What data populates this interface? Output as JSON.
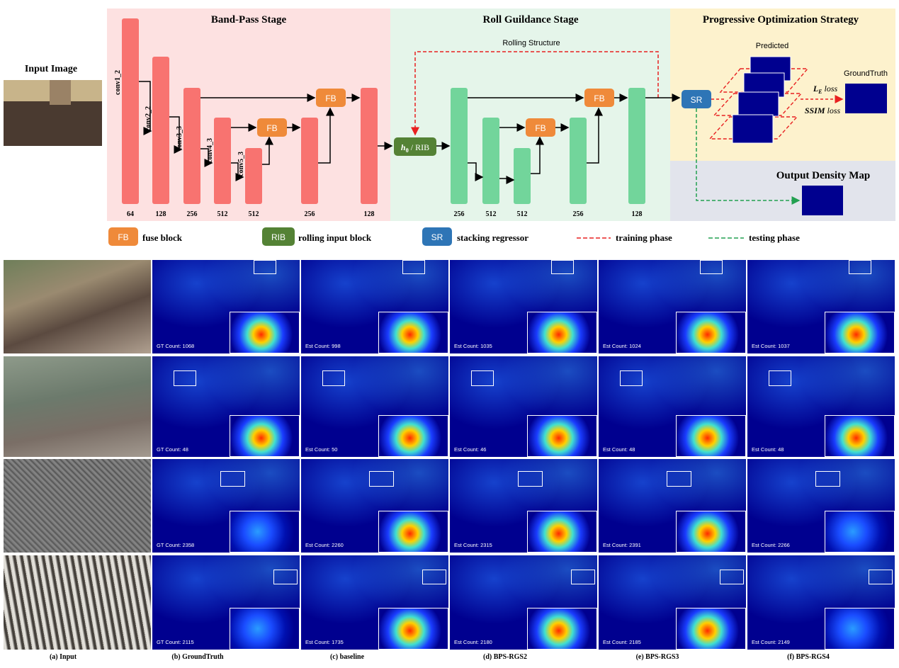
{
  "stages": {
    "band_pass": "Band-Pass Stage",
    "roll": "Roll Guildance Stage",
    "progressive": "Progressive Optimization Strategy",
    "output": "Output Density Map"
  },
  "labels": {
    "input_image": "Input Image",
    "rolling_structure": "Rolling Structure",
    "predicted": "Predicted",
    "groundtruth": "GroundTruth",
    "le_loss_sym": "L",
    "le_loss_sub": "E",
    "le_loss_word": "loss",
    "ssim_loss_sym": "SSIM",
    "ssim_loss_word": "loss",
    "rib_sym": "h",
    "rib_sub": "θ",
    "rib_rest": "/ RIB"
  },
  "blocks": {
    "fb": "FB",
    "sr": "SR"
  },
  "conv_labels": [
    "conv1_2",
    "conv2_2",
    "conv3_3",
    "conv4_3",
    "conv5_3"
  ],
  "band_channels": [
    "64",
    "128",
    "256",
    "512",
    "512",
    "256",
    "128"
  ],
  "roll_channels": [
    "256",
    "512",
    "512",
    "256",
    "128"
  ],
  "legend": {
    "fb_badge": "FB",
    "fb_text": "fuse block",
    "rib_badge": "RIB",
    "rib_text": "rolling input block",
    "sr_badge": "SR",
    "sr_text": "stacking regressor",
    "training": "training phase",
    "testing": "testing phase"
  },
  "colors": {
    "band_bg": "#fde1e1",
    "roll_bg": "#e5f5ea",
    "prog_bg": "#fdf2cd",
    "out_bg": "#e2e4ec",
    "red_bar": "#f87370",
    "green_bar": "#72d59b",
    "fb": "#ef8a3a",
    "rib": "#548235",
    "sr": "#2e75b6",
    "training": "#e82020",
    "testing": "#22a050",
    "map": "#00008f"
  },
  "results": {
    "columns": [
      "(a) Input",
      "(b) GroundTruth",
      "(c) baseline",
      "(d) BPS-RGS2",
      "(e) BPS-RGS3",
      "(f) BPS-RGS4"
    ],
    "rows": [
      {
        "counts": [
          "GT Count: 1068",
          "Est Count: 998",
          "Est Count: 1035",
          "Est Count: 1024",
          "Est Count: 1037"
        ]
      },
      {
        "counts": [
          "GT Count: 48",
          "Est Count: 50",
          "Est Count: 46",
          "Est Count: 48",
          "Est Count: 48"
        ]
      },
      {
        "counts": [
          "GT Count: 2358",
          "Est Count: 2260",
          "Est Count: 2315",
          "Est Count: 2391",
          "Est Count: 2266"
        ]
      },
      {
        "counts": [
          "GT Count: 2115",
          "Est Count: 1735",
          "Est Count: 2180",
          "Est Count: 2185",
          "Est Count: 2149"
        ]
      }
    ]
  }
}
